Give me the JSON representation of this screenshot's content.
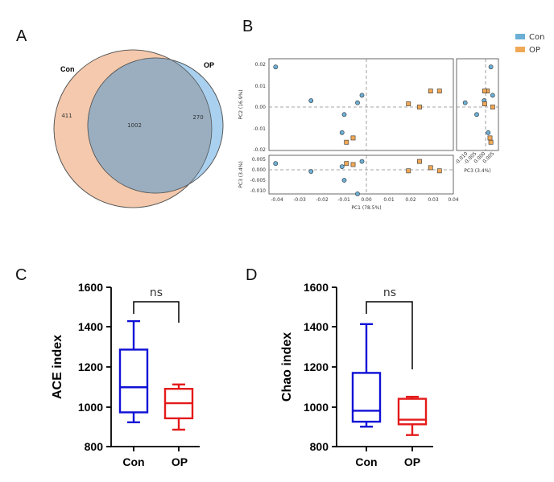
{
  "panels": {
    "A": {
      "letter": "A",
      "labels": {
        "left": "Con",
        "right": "OP"
      },
      "counts": {
        "left_only": "411",
        "shared": "1002",
        "right_only": "270"
      },
      "colors": {
        "left": "#f4c9ad",
        "right": "#a9d1ef",
        "overlap": "#9aaec0",
        "stroke": "#555555"
      }
    },
    "B": {
      "letter": "B",
      "legend": [
        {
          "name": "Con",
          "color": "#6bafd6"
        },
        {
          "name": "OP",
          "color": "#f0a857"
        }
      ],
      "labels": {
        "pc1": "PC1 (78.5%)",
        "pc2": "PC2 (16.9%)",
        "pc3_left": "PC3 (3.4%)",
        "pc3_bottom": "PC3 (3.4%)"
      },
      "ticks": {
        "pc1": [
          "-0.04",
          "-0.03",
          "-0.02",
          "-0.01",
          "0.00",
          "0.01",
          "0.02",
          "0.03",
          "0.04"
        ],
        "pc2": [
          "0.02",
          "0.01",
          "0.00",
          "-0.01",
          "-0.02"
        ],
        "pc3_left": [
          "0.005",
          "0.000",
          "-0.005",
          "-0.010"
        ],
        "pc3_bottom": [
          "-0.010",
          "-0.005",
          "0.000",
          "0.005"
        ]
      },
      "points": {
        "Con": [
          {
            "pc1": -0.041,
            "pc2": 0.0188,
            "pc3": 0.003
          },
          {
            "pc1": -0.025,
            "pc2": 0.003,
            "pc3": -0.0008
          },
          {
            "pc1": -0.01,
            "pc2": -0.0035,
            "pc3": -0.005
          },
          {
            "pc1": -0.011,
            "pc2": -0.012,
            "pc3": 0.0015
          },
          {
            "pc1": -0.004,
            "pc2": 0.002,
            "pc3": -0.0115
          },
          {
            "pc1": -0.002,
            "pc2": 0.0055,
            "pc3": 0.004
          }
        ],
        "OP": [
          {
            "pc1": -0.009,
            "pc2": -0.0165,
            "pc3": 0.003
          },
          {
            "pc1": -0.006,
            "pc2": -0.0145,
            "pc3": 0.0025
          },
          {
            "pc1": 0.019,
            "pc2": 0.0015,
            "pc3": -0.0005
          },
          {
            "pc1": 0.024,
            "pc2": 0.0,
            "pc3": 0.004
          },
          {
            "pc1": 0.029,
            "pc2": 0.0075,
            "pc3": 0.001
          },
          {
            "pc1": 0.033,
            "pc2": 0.0075,
            "pc3": -0.0005
          }
        ]
      }
    },
    "C": {
      "letter": "C",
      "ylabel": "ACE index",
      "yticks": [
        "800",
        "1000",
        "1200",
        "1400",
        "1600"
      ],
      "significance": "ns"
    },
    "D": {
      "letter": "D",
      "ylabel": "Chao index",
      "yticks": [
        "800",
        "1000",
        "1200",
        "1400",
        "1600"
      ],
      "significance": "ns"
    }
  },
  "chart_data": [
    {
      "type": "box",
      "title": "",
      "ylabel": "ACE index",
      "ylim": [
        800,
        1600
      ],
      "categories": [
        "Con",
        "OP"
      ],
      "colors": [
        "#1010d6",
        "#e41a1a"
      ],
      "boxes": [
        {
          "min": 922,
          "q1": 972,
          "median": 1098,
          "q3": 1287,
          "max": 1430
        },
        {
          "min": 885,
          "q1": 942,
          "median": 1018,
          "q3": 1090,
          "max": 1112
        }
      ]
    },
    {
      "type": "box",
      "title": "",
      "ylabel": "Chao index",
      "ylim": [
        800,
        1600
      ],
      "categories": [
        "Con",
        "OP"
      ],
      "colors": [
        "#1010d6",
        "#e41a1a"
      ],
      "boxes": [
        {
          "min": 900,
          "q1": 925,
          "median": 980,
          "q3": 1170,
          "max": 1415
        },
        {
          "min": 858,
          "q1": 912,
          "median": 935,
          "q3": 1040,
          "max": 1050
        }
      ]
    }
  ]
}
